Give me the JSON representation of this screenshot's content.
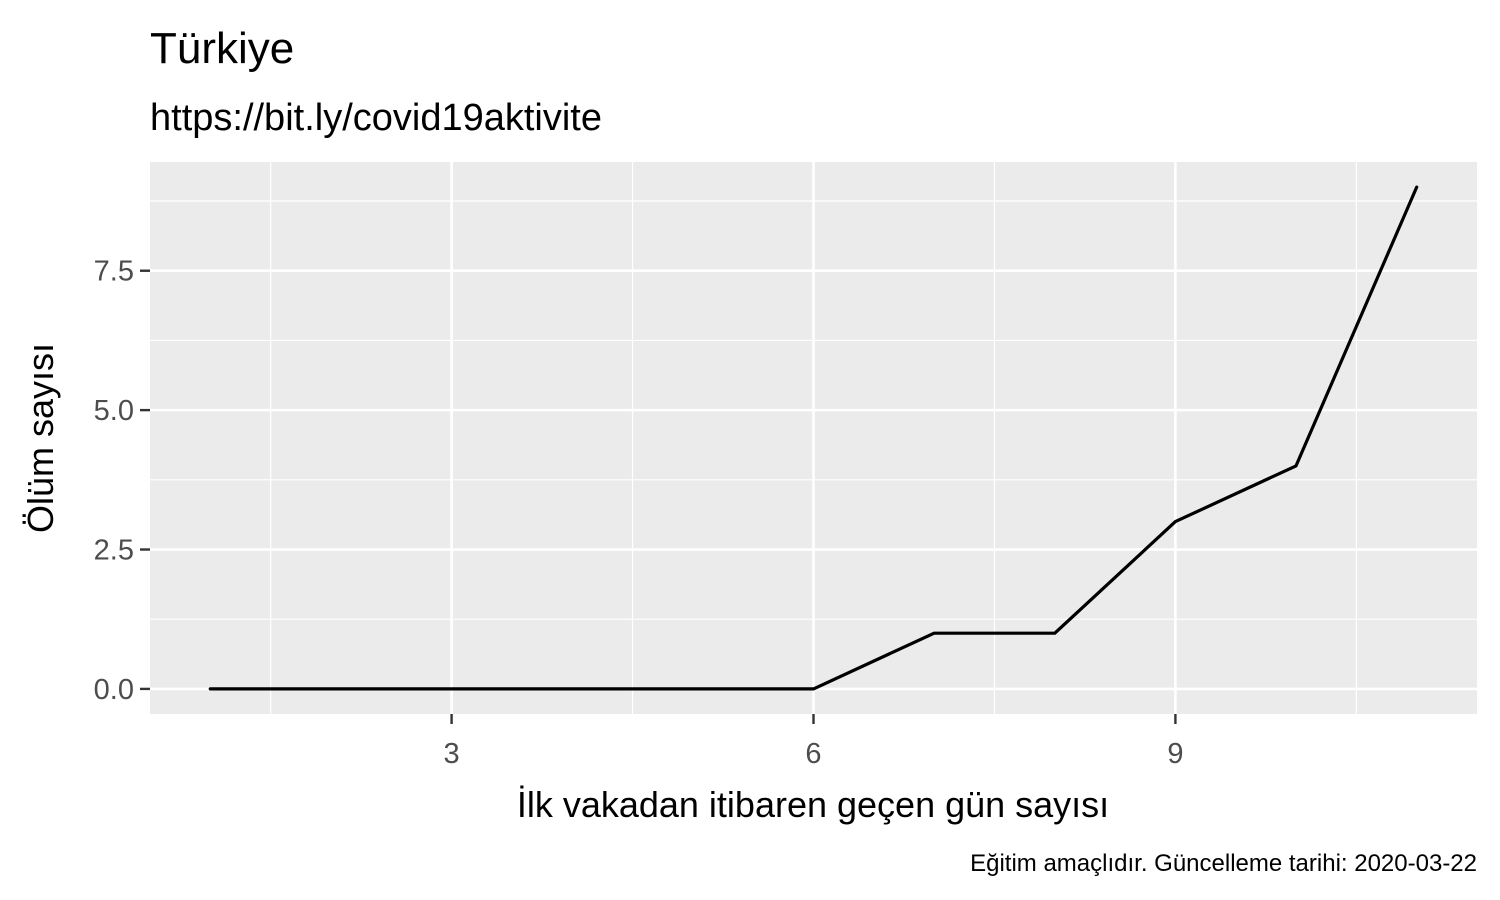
{
  "chart_data": {
    "type": "line",
    "title": "Türkiye",
    "subtitle": "https://bit.ly/covid19aktivite",
    "xlabel": "İlk vakadan itibaren geçen gün sayısı",
    "ylabel": "Ölüm sayısı",
    "caption": "Eğitim amaçlıdır. Güncelleme tarihi: 2020-03-22",
    "x": [
      1,
      2,
      3,
      4,
      5,
      6,
      7,
      8,
      9,
      10,
      11
    ],
    "series": [
      {
        "values": [
          0,
          0,
          0,
          0,
          0,
          0,
          1,
          1,
          3,
          4,
          9
        ]
      }
    ],
    "xlim": [
      0.5,
      11.5
    ],
    "ylim": [
      -0.45,
      9.45
    ],
    "x_ticks": [
      3,
      6,
      9
    ],
    "x_tick_labels": [
      "3",
      "6",
      "9"
    ],
    "y_ticks": [
      0,
      2.5,
      5,
      7.5
    ],
    "y_tick_labels": [
      "0.0",
      "2.5",
      "5.0",
      "7.5"
    ],
    "grid": true,
    "colors": {
      "panel": "#ebebeb",
      "grid": "#ffffff",
      "line": "#000000",
      "tick_text": "#4d4d4d",
      "tick_mark": "#333333"
    }
  }
}
